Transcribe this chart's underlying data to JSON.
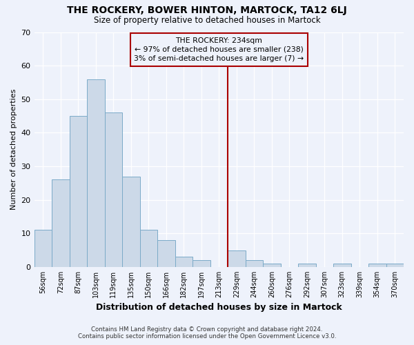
{
  "title": "THE ROCKERY, BOWER HINTON, MARTOCK, TA12 6LJ",
  "subtitle": "Size of property relative to detached houses in Martock",
  "xlabel": "Distribution of detached houses by size in Martock",
  "ylabel": "Number of detached properties",
  "bar_color": "#ccd9e8",
  "bar_edge_color": "#7aaac8",
  "background_color": "#eef2fb",
  "plot_bg_color": "#eef2fb",
  "categories": [
    "56sqm",
    "72sqm",
    "87sqm",
    "103sqm",
    "119sqm",
    "135sqm",
    "150sqm",
    "166sqm",
    "182sqm",
    "197sqm",
    "213sqm",
    "229sqm",
    "244sqm",
    "260sqm",
    "276sqm",
    "292sqm",
    "307sqm",
    "323sqm",
    "339sqm",
    "354sqm",
    "370sqm"
  ],
  "values": [
    11,
    26,
    45,
    56,
    46,
    27,
    11,
    8,
    3,
    2,
    0,
    5,
    2,
    1,
    0,
    1,
    0,
    1,
    0,
    1,
    1
  ],
  "ylim": [
    0,
    70
  ],
  "yticks": [
    0,
    10,
    20,
    30,
    40,
    50,
    60,
    70
  ],
  "property_line_index": 11,
  "annotation_text_line1": "THE ROCKERY: 234sqm",
  "annotation_text_line2": "← 97% of detached houses are smaller (238)",
  "annotation_text_line3": "3% of semi-detached houses are larger (7) →",
  "annotation_box_color": "#aa0000",
  "footer_line1": "Contains HM Land Registry data © Crown copyright and database right 2024.",
  "footer_line2": "Contains public sector information licensed under the Open Government Licence v3.0."
}
